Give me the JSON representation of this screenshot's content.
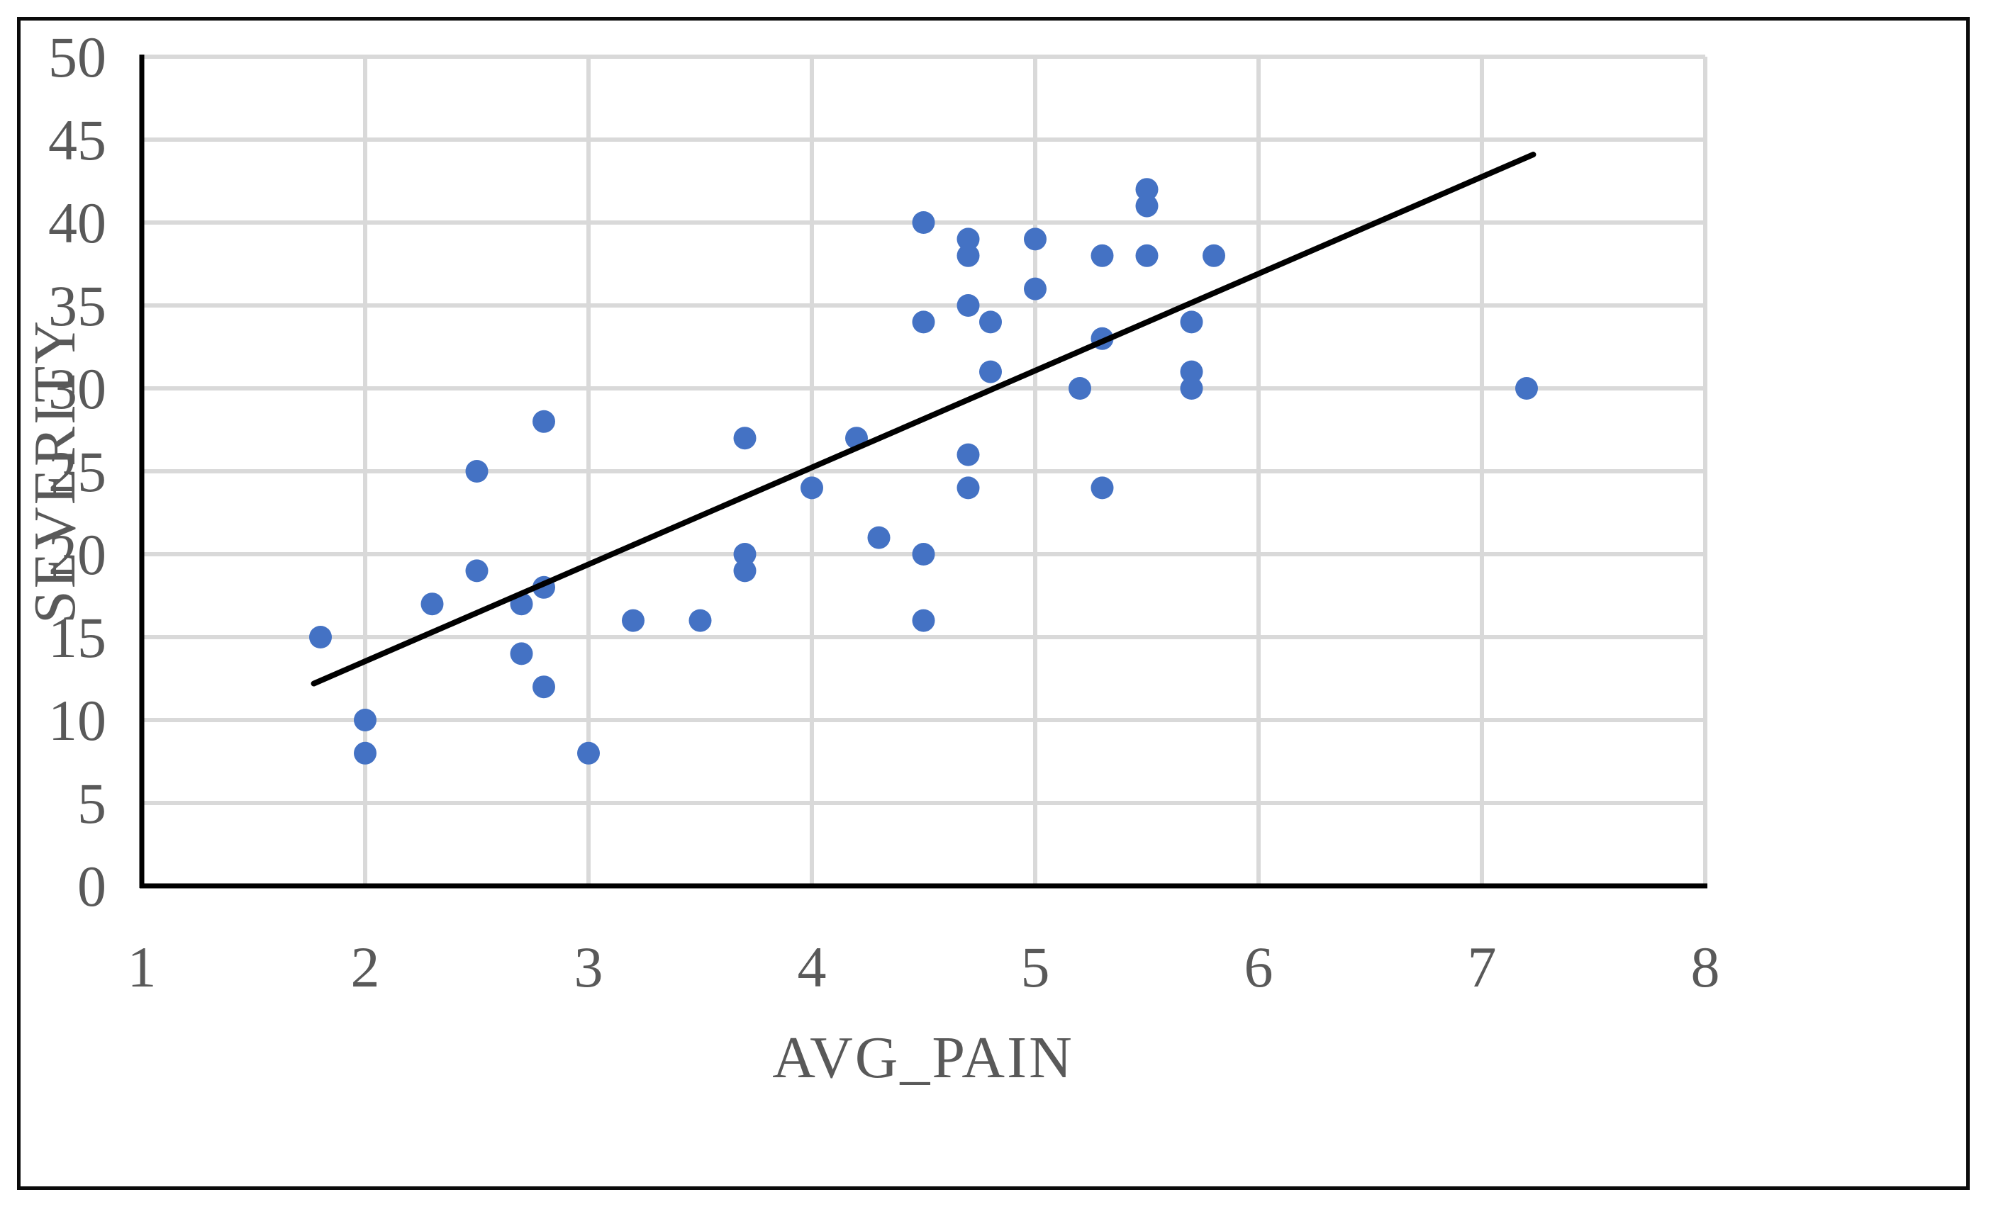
{
  "chart_data": {
    "type": "scatter",
    "title": "",
    "xlabel": "AVG_PAIN",
    "ylabel": "SEVERITY",
    "xlim": [
      1,
      8
    ],
    "ylim": [
      0,
      50
    ],
    "xticks": [
      1,
      2,
      3,
      4,
      5,
      6,
      7,
      8
    ],
    "yticks": [
      0,
      5,
      10,
      15,
      20,
      25,
      30,
      35,
      40,
      45,
      50
    ],
    "grid": "on",
    "legend": "none",
    "points": [
      [
        1.8,
        15
      ],
      [
        2,
        10
      ],
      [
        2,
        8
      ],
      [
        2.3,
        17
      ],
      [
        2.5,
        25
      ],
      [
        2.5,
        19
      ],
      [
        2.7,
        17
      ],
      [
        2.7,
        14
      ],
      [
        2.8,
        28
      ],
      [
        2.8,
        18
      ],
      [
        2.8,
        12
      ],
      [
        3,
        8
      ],
      [
        3.2,
        16
      ],
      [
        3.5,
        16
      ],
      [
        3.7,
        27
      ],
      [
        3.7,
        20
      ],
      [
        3.7,
        19
      ],
      [
        4,
        24
      ],
      [
        4.2,
        27
      ],
      [
        4.3,
        21
      ],
      [
        4.5,
        40
      ],
      [
        4.5,
        34
      ],
      [
        4.5,
        20
      ],
      [
        4.5,
        16
      ],
      [
        4.7,
        39
      ],
      [
        4.7,
        38
      ],
      [
        4.7,
        35
      ],
      [
        4.7,
        26
      ],
      [
        4.7,
        24
      ],
      [
        4.8,
        34
      ],
      [
        4.8,
        31
      ],
      [
        5,
        39
      ],
      [
        5,
        36
      ],
      [
        5.2,
        30
      ],
      [
        5.3,
        38
      ],
      [
        5.3,
        33
      ],
      [
        5.3,
        24
      ],
      [
        5.5,
        42
      ],
      [
        5.5,
        41
      ],
      [
        5.5,
        38
      ],
      [
        5.7,
        34
      ],
      [
        5.7,
        31
      ],
      [
        5.7,
        30
      ],
      [
        5.8,
        38
      ],
      [
        7.2,
        30
      ]
    ],
    "trendline": {
      "x1": 1.77,
      "y1": 12.2,
      "x2": 7.23,
      "y2": 44.1
    },
    "colors": {
      "point": "#4472C4",
      "trend": "#000000",
      "grid": "#D9D9D9",
      "axis": "#000000",
      "tick_text": "#595959",
      "border": "#0b0b0b",
      "background": "#ffffff"
    }
  }
}
